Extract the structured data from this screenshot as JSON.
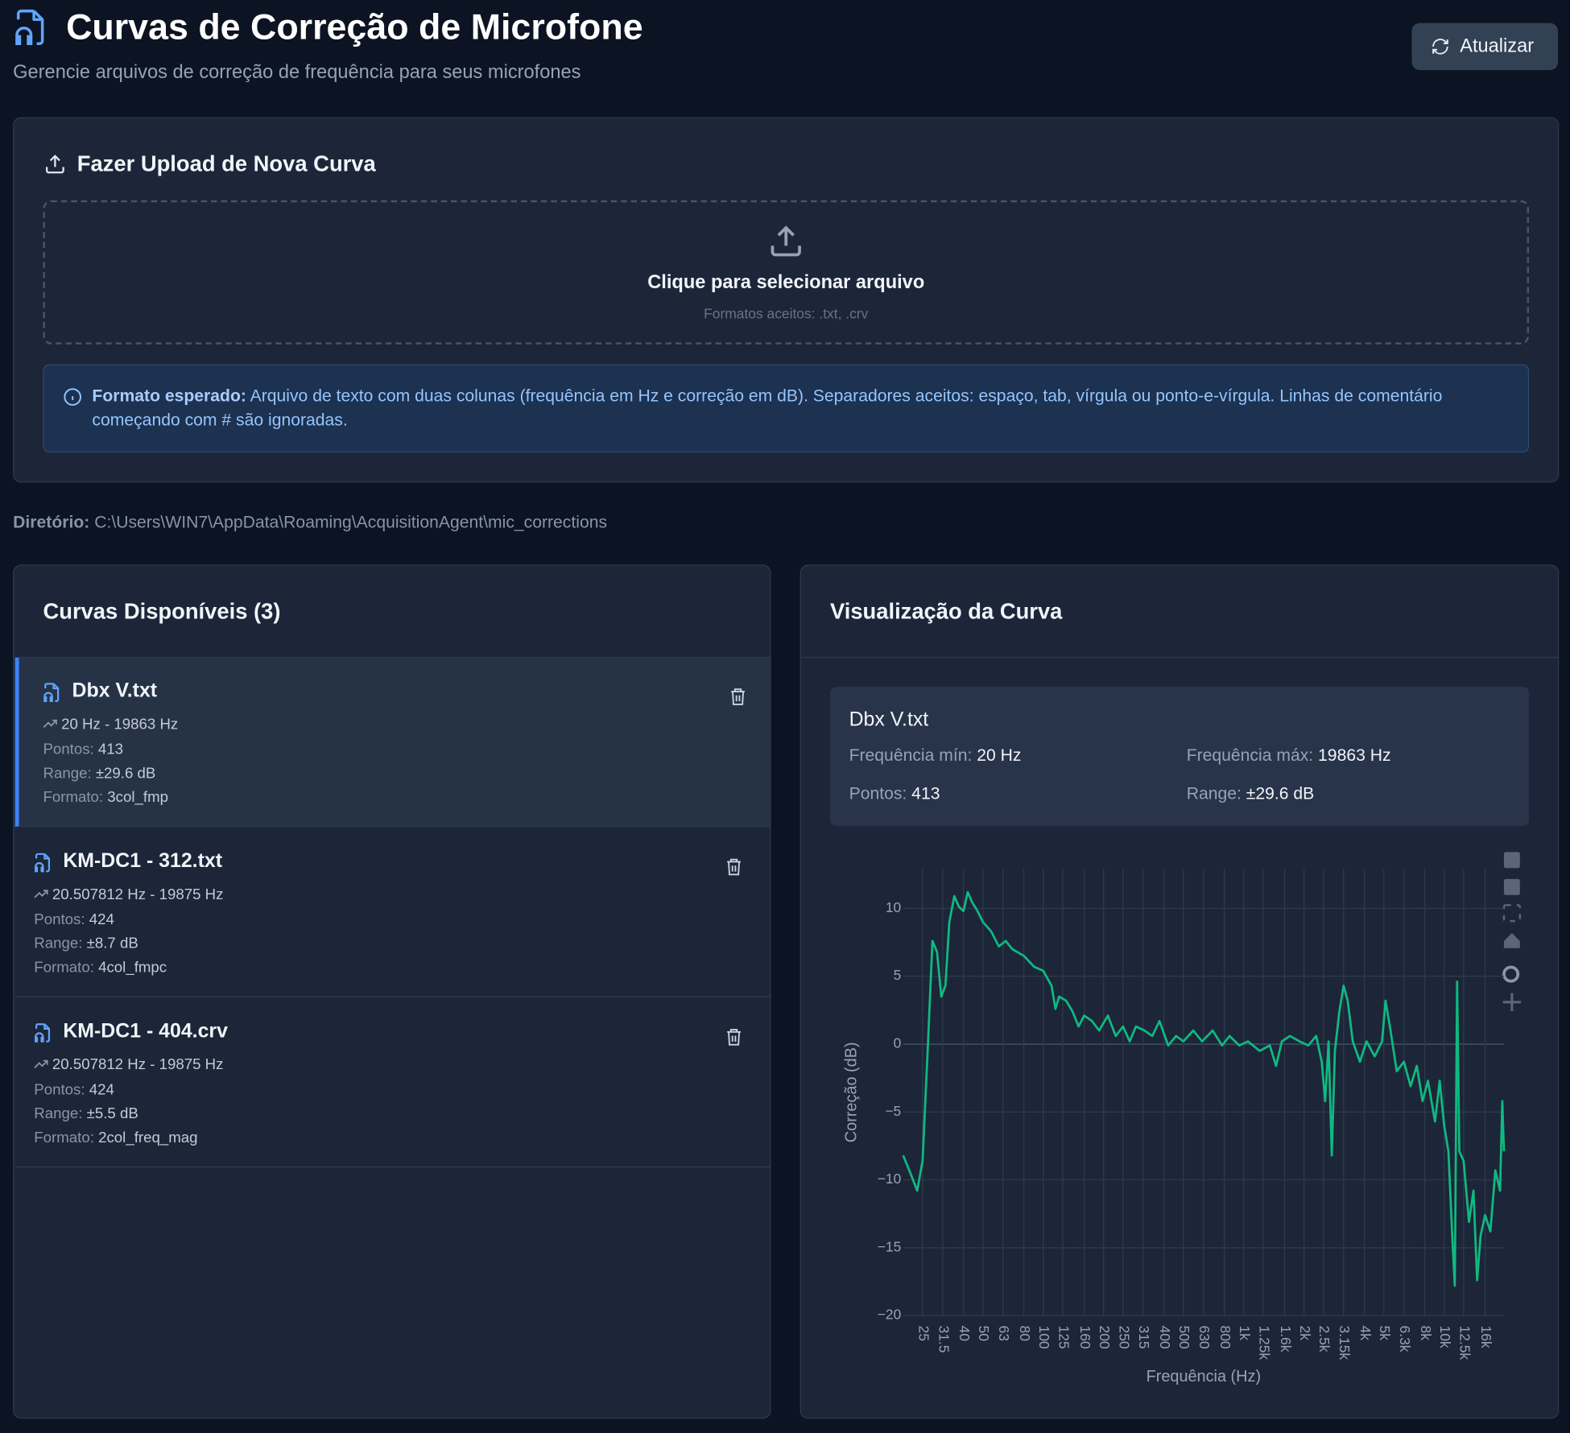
{
  "header": {
    "title": "Curvas de Correção de Microfone",
    "subtitle": "Gerencie arquivos de correção de frequência para seus microfones",
    "refresh_button": "Atualizar"
  },
  "upload": {
    "title": "Fazer Upload de Nova Curva",
    "dropzone_title": "Clique para selecionar arquivo",
    "dropzone_hint": "Formatos aceitos: .txt, .crv",
    "info_label": "Formato esperado:",
    "info_text": "Arquivo de texto com duas colunas (frequência em Hz e correção em dB). Separadores aceitos: espaço, tab, vírgula ou ponto-e-vírgula. Linhas de comentário começando com # são ignoradas."
  },
  "directory": {
    "label": "Diretório:",
    "path": "C:\\Users\\WIN7\\AppData\\Roaming\\AcquisitionAgent\\mic_corrections"
  },
  "curves": {
    "title": "Curvas Disponíveis (3)",
    "items": [
      {
        "name": "Dbx V.txt",
        "freq_range": "20 Hz - 19863 Hz",
        "points_label": "Pontos:",
        "points": 413,
        "range_label": "Range:",
        "range": "±29.6 dB",
        "format_label": "Formato:",
        "format": "3col_fmp"
      },
      {
        "name": "KM-DC1 - 312.txt",
        "freq_range": "20.507812 Hz - 19875 Hz",
        "points_label": "Pontos:",
        "points": 424,
        "range_label": "Range:",
        "range": "±8.7 dB",
        "format_label": "Formato:",
        "format": "4col_fmpc"
      },
      {
        "name": "KM-DC1 - 404.crv",
        "freq_range": "20.507812 Hz - 19875 Hz",
        "points_label": "Pontos:",
        "points": 424,
        "range_label": "Range:",
        "range": "±5.5 dB",
        "format_label": "Formato:",
        "format": "2col_freq_mag"
      }
    ]
  },
  "preview": {
    "title": "Visualização da Curva",
    "info": {
      "name": "Dbx V.txt",
      "min_label": "Frequência mín:",
      "min": "20 Hz",
      "max_label": "Frequência máx:",
      "max": "19863 Hz",
      "points_label": "Pontos:",
      "points": 413,
      "range_label": "Range:",
      "range": "±29.6 dB"
    }
  },
  "chart_data": {
    "type": "line",
    "xlabel": "Frequência (Hz)",
    "ylabel": "Correção (dB)",
    "log_x": true,
    "grid": true,
    "color": "#10b981",
    "x": [
      20,
      22,
      23.5,
      25,
      26.5,
      28,
      29.5,
      31,
      32.5,
      34,
      36,
      38,
      40,
      42,
      44,
      47,
      50,
      55,
      60,
      65,
      70,
      80,
      90,
      100,
      110,
      115,
      120,
      130,
      140,
      150,
      160,
      175,
      190,
      210,
      230,
      250,
      270,
      290,
      320,
      350,
      380,
      420,
      460,
      500,
      560,
      620,
      700,
      780,
      850,
      950,
      1050,
      1200,
      1350,
      1450,
      1550,
      1700,
      1900,
      2100,
      2300,
      2450,
      2550,
      2650,
      2750,
      2850,
      3000,
      3150,
      3300,
      3500,
      3800,
      4100,
      4500,
      4900,
      5100,
      5400,
      5800,
      6300,
      6800,
      7300,
      7800,
      8300,
      9000,
      9500,
      10000,
      10500,
      11000,
      11300,
      11600,
      11900,
      12500,
      13300,
      14000,
      14600,
      15200,
      16000,
      17000,
      18000,
      19000,
      19500,
      19863
    ],
    "values": [
      -8.2,
      -9.7,
      -10.8,
      -8.6,
      -0.5,
      7.6,
      6.8,
      3.5,
      4.3,
      9,
      10.9,
      10.1,
      9.8,
      11.2,
      10.5,
      9.8,
      9.0,
      8.3,
      7.2,
      7.6,
      7.0,
      6.5,
      5.7,
      5.4,
      4.3,
      2.6,
      3.5,
      3.2,
      2.4,
      1.3,
      2.1,
      1.7,
      1.0,
      2.1,
      0.6,
      1.3,
      0.2,
      1.3,
      1.0,
      0.6,
      1.7,
      -0.1,
      0.6,
      0.2,
      1.0,
      0.2,
      1.0,
      -0.1,
      0.6,
      -0.1,
      0.2,
      -0.5,
      -0.1,
      -1.6,
      0.2,
      0.6,
      0.2,
      -0.1,
      0.6,
      -1.3,
      -4.2,
      0.2,
      -8.2,
      -0.5,
      2.4,
      4.3,
      3.2,
      0.2,
      -1.3,
      0.2,
      -0.9,
      0.2,
      3.2,
      1.0,
      -2.0,
      -1.3,
      -3.1,
      -1.6,
      -4.2,
      -2.7,
      -5.7,
      -2.7,
      -6.0,
      -7.9,
      -14.5,
      -17.8,
      4.6,
      -7.9,
      -8.6,
      -13.1,
      -10.8,
      -17.4,
      -14.1,
      -12.6,
      -13.8,
      -9.3,
      -10.8,
      -4.2,
      -7.9
    ],
    "xlim": [
      20,
      19863
    ],
    "ylim": [
      -20,
      12.9
    ],
    "xticks": [
      25,
      31.5,
      40,
      50,
      63,
      80,
      100,
      125,
      160,
      200,
      250,
      315,
      400,
      500,
      630,
      800,
      {
        "value": 1000,
        "label": "1k"
      },
      {
        "value": 1250,
        "label": "1.25k"
      },
      {
        "value": 1600,
        "label": "1.6k"
      },
      {
        "value": 2000,
        "label": "2k"
      },
      {
        "value": 2500,
        "label": "2.5k"
      },
      {
        "value": 3150,
        "label": "3.15k"
      },
      {
        "value": 4000,
        "label": "4k"
      },
      {
        "value": 5000,
        "label": "5k"
      },
      {
        "value": 6300,
        "label": "6.3k"
      },
      {
        "value": 8000,
        "label": "8k"
      },
      {
        "value": 10000,
        "label": "10k"
      },
      {
        "value": 12500,
        "label": "12.5k"
      },
      {
        "value": 16000,
        "label": "16k"
      }
    ],
    "yticks": [
      {
        "value": -20,
        "label": "−20"
      },
      {
        "value": -15,
        "label": "−15"
      },
      {
        "value": -10,
        "label": "−10"
      },
      {
        "value": -5,
        "label": "−5"
      },
      0,
      5,
      10
    ]
  }
}
